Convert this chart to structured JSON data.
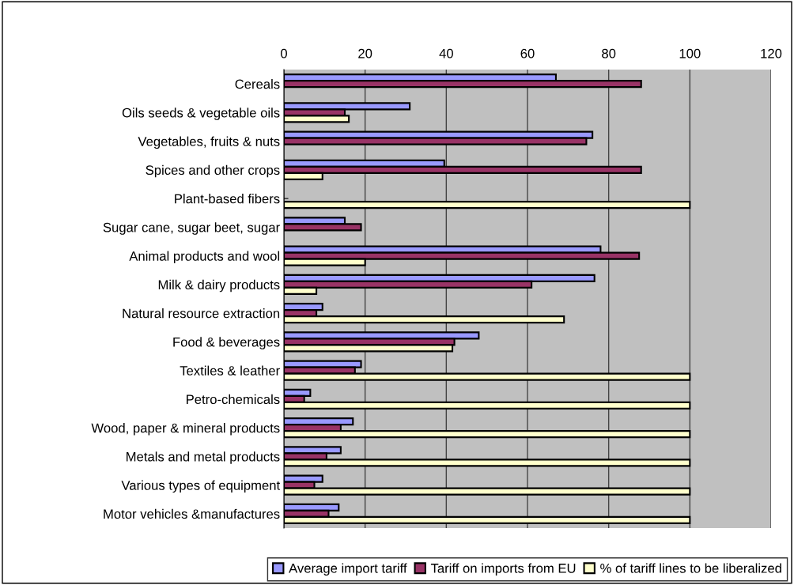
{
  "chart_data": {
    "type": "bar",
    "orientation": "horizontal",
    "categories": [
      "Cereals",
      "Oils seeds & vegetable oils",
      "Vegetables, fruits & nuts",
      "Spices and other crops",
      "Plant-based fibers",
      "Sugar cane, sugar beet, sugar",
      "Animal products and wool",
      "Milk & dairy products",
      "Natural resource extraction",
      "Food & beverages",
      "Textiles & leather",
      "Petro-chemicals",
      "Wood, paper & mineral products",
      "Metals and metal products",
      "Various types of equipment",
      "Motor vehicles &manufactures"
    ],
    "series": [
      {
        "name": "Average import tariff",
        "color": "#9999ff",
        "values": [
          67,
          31,
          76,
          39.5,
          null,
          15,
          78,
          76.5,
          9.5,
          48,
          19,
          6.5,
          17,
          14,
          9.5,
          13.5
        ]
      },
      {
        "name": "Tariff on imports from EU",
        "color": "#993366",
        "values": [
          88,
          15,
          74.5,
          88,
          null,
          19,
          87.5,
          61,
          8,
          42,
          17.5,
          5,
          14,
          10.5,
          7.5,
          11
        ]
      },
      {
        "name": "% of tariff lines to be liberalized",
        "color": "#ffffcc",
        "values": [
          null,
          16,
          null,
          9.5,
          100,
          null,
          20,
          8,
          69,
          41.5,
          100,
          100,
          100,
          100,
          100,
          100
        ]
      }
    ],
    "xlim": [
      0,
      120
    ],
    "xticks": [
      0,
      20,
      40,
      60,
      80,
      100,
      120
    ],
    "grid": "x",
    "legend": "bottom"
  }
}
